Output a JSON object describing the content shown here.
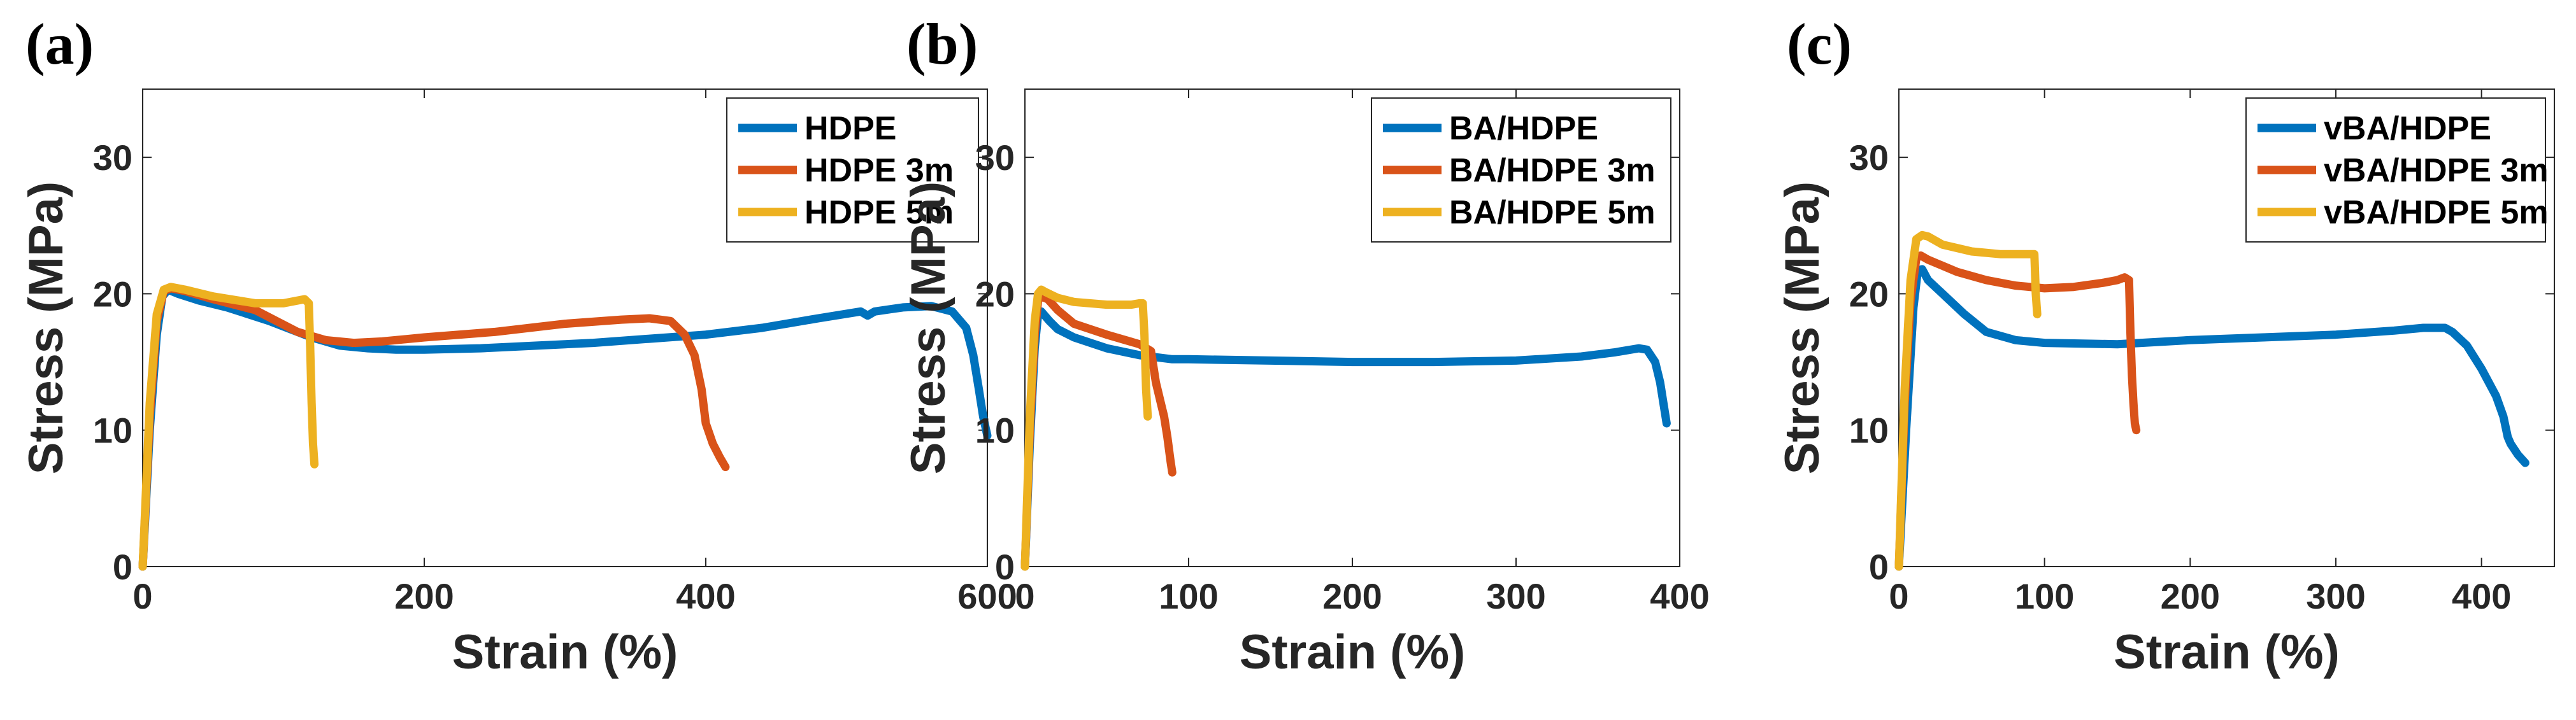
{
  "chart_data": [
    {
      "type": "line",
      "panel_label": "(a)",
      "xlabel": "Strain (%)",
      "ylabel": "Stress (MPa)",
      "xlim": [
        0,
        600
      ],
      "ylim": [
        0,
        35
      ],
      "xticks": [
        0,
        200,
        400,
        600
      ],
      "yticks": [
        0,
        10,
        20,
        30
      ],
      "legend_position": "top-right",
      "series": [
        {
          "name": "HDPE",
          "color": "#0072BD",
          "x": [
            0,
            5,
            10,
            14,
            18,
            25,
            40,
            60,
            90,
            120,
            140,
            160,
            180,
            200,
            240,
            280,
            320,
            360,
            400,
            440,
            480,
            510,
            515,
            520,
            540,
            560,
            575,
            585,
            590,
            594,
            597,
            600
          ],
          "y": [
            0,
            10,
            17,
            19.8,
            20.3,
            20,
            19.5,
            19,
            18,
            16.8,
            16.2,
            16,
            15.9,
            15.9,
            16,
            16.2,
            16.4,
            16.7,
            17,
            17.5,
            18.2,
            18.7,
            18.4,
            18.7,
            19,
            19.1,
            18.7,
            17.5,
            15.5,
            13,
            11,
            9.6
          ]
        },
        {
          "name": "HDPE 3m",
          "color": "#D95319",
          "x": [
            0,
            5,
            10,
            15,
            20,
            30,
            50,
            80,
            110,
            130,
            150,
            170,
            200,
            250,
            300,
            340,
            360,
            375,
            385,
            392,
            397,
            400,
            405,
            410,
            414
          ],
          "y": [
            0,
            11,
            18,
            20.2,
            20.4,
            20.2,
            19.6,
            18.8,
            17.2,
            16.6,
            16.4,
            16.5,
            16.8,
            17.2,
            17.8,
            18.1,
            18.2,
            18,
            17,
            15.5,
            13,
            10.5,
            9,
            8,
            7.3
          ]
        },
        {
          "name": "HDPE 5m",
          "color": "#EDB120",
          "x": [
            0,
            5,
            10,
            15,
            20,
            30,
            50,
            80,
            100,
            110,
            115,
            118,
            119,
            120,
            121,
            122
          ],
          "y": [
            0,
            12,
            18.5,
            20.3,
            20.5,
            20.3,
            19.8,
            19.3,
            19.3,
            19.5,
            19.6,
            19.3,
            16,
            12,
            9,
            7.5
          ]
        }
      ]
    },
    {
      "type": "line",
      "panel_label": "(b)",
      "xlabel": "Strain (%)",
      "ylabel": "Stress (MPa)",
      "xlim": [
        0,
        400
      ],
      "ylim": [
        0,
        35
      ],
      "xticks": [
        0,
        100,
        200,
        300,
        400
      ],
      "yticks": [
        0,
        10,
        20,
        30
      ],
      "legend_position": "top-right",
      "series": [
        {
          "name": "BA/HDPE",
          "color": "#0072BD",
          "x": [
            0,
            3,
            6,
            8,
            10,
            15,
            20,
            30,
            50,
            70,
            90,
            100,
            150,
            200,
            250,
            300,
            340,
            360,
            375,
            380,
            385,
            388,
            390,
            392
          ],
          "y": [
            0,
            9,
            16,
            18.5,
            18.7,
            18,
            17.4,
            16.8,
            16,
            15.5,
            15.2,
            15.2,
            15.1,
            15,
            15,
            15.1,
            15.4,
            15.7,
            16,
            15.9,
            15,
            13.5,
            12,
            10.5
          ]
        },
        {
          "name": "BA/HDPE 3m",
          "color": "#D95319",
          "x": [
            0,
            3,
            6,
            8,
            10,
            14,
            20,
            30,
            50,
            70,
            77,
            80,
            83,
            85,
            87,
            89,
            90
          ],
          "y": [
            0,
            10,
            17,
            19.5,
            19.8,
            19.6,
            18.8,
            17.8,
            17,
            16.3,
            15.8,
            13.5,
            12,
            11,
            9.5,
            7.7,
            6.9
          ]
        },
        {
          "name": "BA/HDPE 5m",
          "color": "#EDB120",
          "x": [
            0,
            3,
            6,
            8,
            10,
            13,
            20,
            30,
            50,
            65,
            70,
            72,
            73,
            74,
            75
          ],
          "y": [
            0,
            11,
            18,
            20,
            20.3,
            20.1,
            19.7,
            19.4,
            19.2,
            19.2,
            19.3,
            19.3,
            17,
            13,
            11
          ]
        }
      ]
    },
    {
      "type": "line",
      "panel_label": "(c)",
      "xlabel": "Strain (%)",
      "ylabel": "Stress (MPa)",
      "xlim": [
        0,
        450
      ],
      "ylim": [
        0,
        35
      ],
      "xticks": [
        0,
        100,
        200,
        300,
        400
      ],
      "yticks": [
        0,
        10,
        20,
        30
      ],
      "legend_position": "top-right",
      "series": [
        {
          "name": "vBA/HDPE",
          "color": "#0072BD",
          "x": [
            0,
            5,
            10,
            13,
            16,
            20,
            30,
            45,
            60,
            80,
            100,
            150,
            200,
            250,
            300,
            340,
            360,
            375,
            380,
            390,
            400,
            410,
            415,
            418,
            420,
            425,
            430
          ],
          "y": [
            0,
            10,
            19,
            21.7,
            21.8,
            21,
            20,
            18.5,
            17.2,
            16.6,
            16.4,
            16.3,
            16.6,
            16.8,
            17,
            17.3,
            17.5,
            17.5,
            17.2,
            16.2,
            14.5,
            12.5,
            11,
            9.5,
            9,
            8.2,
            7.6
          ]
        },
        {
          "name": "vBA/HDPE 3m",
          "color": "#D95319",
          "x": [
            0,
            4,
            8,
            12,
            15,
            20,
            40,
            60,
            80,
            100,
            120,
            140,
            150,
            155,
            158,
            159,
            160,
            161,
            162,
            163
          ],
          "y": [
            0,
            12,
            19.5,
            22.6,
            22.8,
            22.5,
            21.6,
            21,
            20.6,
            20.4,
            20.5,
            20.8,
            21,
            21.2,
            21,
            17,
            14,
            12,
            10.5,
            10
          ]
        },
        {
          "name": "vBA/HDPE 5m",
          "color": "#EDB120",
          "x": [
            0,
            4,
            8,
            12,
            16,
            20,
            30,
            50,
            70,
            90,
            93,
            94,
            95
          ],
          "y": [
            0,
            13,
            21,
            24,
            24.3,
            24.2,
            23.6,
            23.1,
            22.9,
            22.9,
            22.9,
            20,
            18.5
          ]
        }
      ]
    }
  ]
}
